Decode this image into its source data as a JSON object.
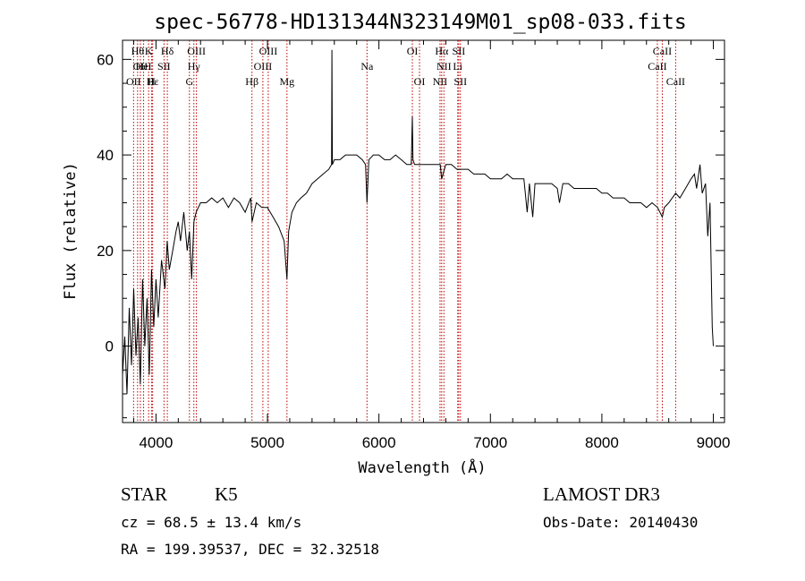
{
  "chart_data": {
    "type": "line",
    "title": "spec-56778-HD131344N323149M01_sp08-033.fits",
    "xlabel": "Wavelength (Å)",
    "ylabel": "Flux (relative)",
    "xlim": [
      3700,
      9100
    ],
    "ylim": [
      -16,
      64
    ],
    "xticks": [
      4000,
      5000,
      6000,
      7000,
      8000,
      9000
    ],
    "yticks": [
      0,
      20,
      40,
      60
    ],
    "grid": false,
    "series": [
      {
        "color": "#000000",
        "x": [
          3700,
          3720,
          3740,
          3760,
          3780,
          3800,
          3820,
          3840,
          3860,
          3880,
          3900,
          3920,
          3940,
          3960,
          3980,
          4000,
          4020,
          4050,
          4080,
          4100,
          4120,
          4150,
          4180,
          4200,
          4220,
          4250,
          4280,
          4300,
          4320,
          4340,
          4360,
          4400,
          4450,
          4500,
          4550,
          4600,
          4650,
          4700,
          4750,
          4800,
          4850,
          4862,
          4900,
          4950,
          5000,
          5050,
          5100,
          5150,
          5175,
          5190,
          5220,
          5260,
          5300,
          5350,
          5400,
          5450,
          5500,
          5550,
          5575,
          5578,
          5582,
          5600,
          5650,
          5700,
          5750,
          5800,
          5850,
          5880,
          5893,
          5910,
          5950,
          6000,
          6050,
          6100,
          6150,
          6200,
          6250,
          6290,
          6300,
          6305,
          6320,
          6350,
          6400,
          6450,
          6500,
          6550,
          6563,
          6600,
          6650,
          6700,
          6750,
          6800,
          6850,
          6900,
          6950,
          7000,
          7050,
          7100,
          7150,
          7200,
          7250,
          7300,
          7330,
          7350,
          7380,
          7400,
          7450,
          7500,
          7550,
          7600,
          7620,
          7650,
          7700,
          7750,
          7800,
          7850,
          7900,
          7950,
          8000,
          8050,
          8100,
          8150,
          8200,
          8250,
          8300,
          8350,
          8400,
          8450,
          8500,
          8542,
          8560,
          8600,
          8662,
          8700,
          8750,
          8800,
          8830,
          8850,
          8880,
          8900,
          8930,
          8950,
          8970,
          8990,
          9000
        ],
        "values": [
          -6,
          2,
          -10,
          8,
          -4,
          12,
          -2,
          6,
          -8,
          14,
          0,
          10,
          -6,
          16,
          4,
          14,
          6,
          18,
          12,
          22,
          16,
          20,
          24,
          26,
          22,
          28,
          20,
          24,
          14,
          26,
          28,
          30,
          30,
          31,
          30,
          31,
          29,
          31,
          30,
          28,
          31,
          26,
          30,
          29,
          29,
          27,
          25,
          22,
          14,
          24,
          28,
          30,
          31,
          32,
          34,
          35,
          36,
          37,
          38,
          62,
          38,
          39,
          39,
          40,
          40,
          40,
          39,
          38,
          30,
          39,
          40,
          40,
          39,
          39,
          40,
          39,
          38,
          38,
          48,
          39,
          38,
          38,
          38,
          38,
          38,
          38,
          35,
          38,
          38,
          37,
          37,
          37,
          36,
          36,
          36,
          35,
          35,
          35,
          36,
          35,
          35,
          35,
          28,
          34,
          27,
          34,
          34,
          34,
          34,
          33,
          30,
          34,
          34,
          33,
          33,
          33,
          33,
          33,
          32,
          32,
          31,
          31,
          31,
          30,
          30,
          30,
          29,
          30,
          29,
          27,
          29,
          30,
          32,
          31,
          33,
          35,
          36,
          33,
          38,
          32,
          34,
          23,
          30,
          4,
          0
        ]
      }
    ],
    "line_markers": [
      {
        "wl": 3835,
        "label": "Hθ",
        "row": 1
      },
      {
        "wl": 3860,
        "label": "OII",
        "row": 2
      },
      {
        "wl": 3889,
        "label": "HeI",
        "row": 2
      },
      {
        "wl": 3934,
        "label": "K",
        "row": 1
      },
      {
        "wl": 3970,
        "label": "Hε",
        "row": 3
      },
      {
        "wl": 3799,
        "label": "OII",
        "row": 3
      },
      {
        "wl": 3960,
        "label": "H",
        "row": 3
      },
      {
        "wl": 4072,
        "label": "SII",
        "row": 2
      },
      {
        "wl": 4102,
        "label": "Hδ",
        "row": 1
      },
      {
        "wl": 4300,
        "label": "G",
        "row": 3
      },
      {
        "wl": 4340,
        "label": "Hγ",
        "row": 2
      },
      {
        "wl": 4363,
        "label": "OIII",
        "row": 1
      },
      {
        "wl": 4861,
        "label": "Hβ",
        "row": 3
      },
      {
        "wl": 4959,
        "label": "OIII",
        "row": 2
      },
      {
        "wl": 5007,
        "label": "OIII",
        "row": 1
      },
      {
        "wl": 5175,
        "label": "Mg",
        "row": 3
      },
      {
        "wl": 5893,
        "label": "Na",
        "row": 2
      },
      {
        "wl": 6300,
        "label": "OI",
        "row": 1
      },
      {
        "wl": 6364,
        "label": "OI",
        "row": 3
      },
      {
        "wl": 6548,
        "label": "NII",
        "row": 3
      },
      {
        "wl": 6563,
        "label": "Hα",
        "row": 1
      },
      {
        "wl": 6583,
        "label": "NII",
        "row": 2
      },
      {
        "wl": 6707,
        "label": "Li",
        "row": 2
      },
      {
        "wl": 6716,
        "label": "SII",
        "row": 1
      },
      {
        "wl": 6731,
        "label": "SII",
        "row": 3
      },
      {
        "wl": 8498,
        "label": "CaII",
        "row": 2
      },
      {
        "wl": 8542,
        "label": "CaII",
        "row": 1
      },
      {
        "wl": 8662,
        "label": "CaII",
        "row": 3
      }
    ],
    "line_marker_color": "#c00000"
  },
  "info": {
    "class": "STAR",
    "subclass": "K5",
    "survey": "LAMOST DR3",
    "cz": "cz = 68.5 ± 13.4 km/s",
    "obs_date": "Obs-Date: 20140430",
    "coords": "RA = 199.39537, DEC =  32.32518"
  }
}
